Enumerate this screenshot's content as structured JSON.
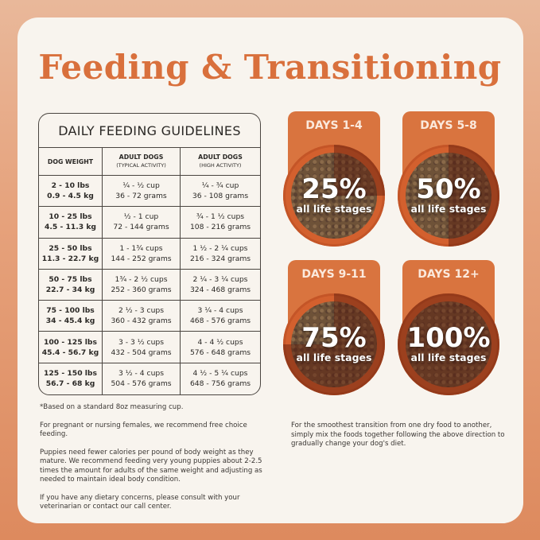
{
  "title": "Feeding & Transitioning",
  "table": {
    "title": "DAILY FEEDING GUIDELINES",
    "headers": [
      {
        "main": "DOG WEIGHT",
        "sub": ""
      },
      {
        "main": "ADULT DOGS",
        "sub": "(TYPICAL ACTIVITY)"
      },
      {
        "main": "ADULT DOGS",
        "sub": "(HIGH ACTIVITY)"
      }
    ],
    "rows": [
      [
        [
          "2 - 10 lbs",
          "0.9 - 4.5 kg"
        ],
        [
          "¼ - ½ cup",
          "36 - 72 grams"
        ],
        [
          "¼ - ¾ cup",
          "36 - 108 grams"
        ]
      ],
      [
        [
          "10 - 25 lbs",
          "4.5 - 11.3 kg"
        ],
        [
          "½ - 1 cup",
          "72 - 144 grams"
        ],
        [
          "¾ - 1 ½ cups",
          "108 - 216 grams"
        ]
      ],
      [
        [
          "25 - 50 lbs",
          "11.3 - 22.7 kg"
        ],
        [
          "1 - 1¾ cups",
          "144 - 252 grams"
        ],
        [
          "1 ½ - 2 ¼ cups",
          "216 - 324 grams"
        ]
      ],
      [
        [
          "50 - 75 lbs",
          "22.7 - 34 kg"
        ],
        [
          "1¾ - 2 ½ cups",
          "252 - 360 grams"
        ],
        [
          "2 ¼ - 3 ¼ cups",
          "324 - 468 grams"
        ]
      ],
      [
        [
          "75 - 100 lbs",
          "34 - 45.4 kg"
        ],
        [
          "2 ½ - 3 cups",
          "360 - 432 grams"
        ],
        [
          "3 ¼ - 4 cups",
          "468 - 576 grams"
        ]
      ],
      [
        [
          "100 - 125 lbs",
          "45.4 - 56.7 kg"
        ],
        [
          "3 - 3 ½ cups",
          "432 - 504 grams"
        ],
        [
          "4 - 4 ½ cups",
          "576 - 648 grams"
        ]
      ],
      [
        [
          "125 - 150 lbs",
          "56.7 - 68 kg"
        ],
        [
          "3 ½ - 4 cups",
          "504 - 576 grams"
        ],
        [
          "4 ½ - 5 ¼ cups",
          "648 - 756 grams"
        ]
      ]
    ]
  },
  "stages": [
    {
      "label": "DAYS 1-4",
      "percent": "25%",
      "fraction": 0.25,
      "sub": "all life stages"
    },
    {
      "label": "DAYS 5-8",
      "percent": "50%",
      "fraction": 0.5,
      "sub": "all life stages"
    },
    {
      "label": "DAYS 9-11",
      "percent": "75%",
      "fraction": 0.75,
      "sub": "all life stages"
    },
    {
      "label": "DAYS 12+",
      "percent": "100%",
      "fraction": 1.0,
      "sub": "all life stages"
    }
  ],
  "notes": [
    "*Based on a standard 8oz measuring cup.",
    "For pregnant or nursing females, we recommend free choice feeding.",
    "Puppies need fewer calories per pound of body weight as they mature. We recommend feeding very young puppies about 2-2.5 times the amount for adults of the same weight and adjusting as needed to maintain ideal body condition.",
    "If you have any dietary concerns, please consult with your veterinarian or contact our call center."
  ],
  "transition_note": "For the smoothest transition from one dry food to another, simply mix the foods together following the above direction to gradually change your dog's diet.",
  "colors": {
    "accent": "#d9703c",
    "card": "#f8f4ee"
  }
}
